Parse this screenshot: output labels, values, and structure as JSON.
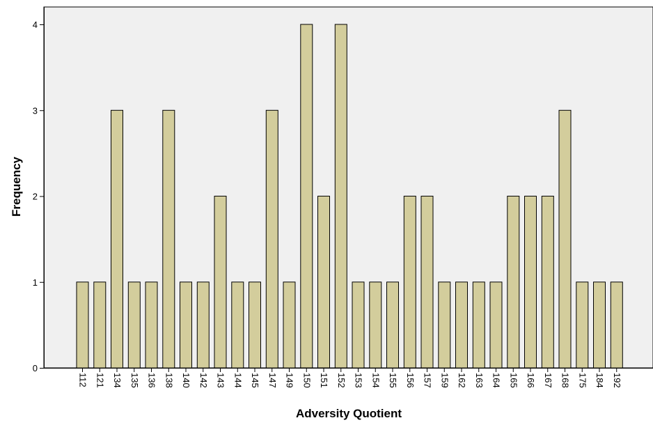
{
  "chart_data": {
    "type": "bar",
    "xlabel": "Adversity Quotient",
    "ylabel": "Frequency",
    "ylim": [
      0,
      4
    ],
    "yticks": [
      0,
      1,
      2,
      3,
      4
    ],
    "categories": [
      "112",
      "121",
      "134",
      "135",
      "136",
      "138",
      "140",
      "142",
      "143",
      "144",
      "145",
      "147",
      "149",
      "150",
      "151",
      "152",
      "153",
      "154",
      "155",
      "156",
      "157",
      "159",
      "162",
      "163",
      "164",
      "165",
      "166",
      "167",
      "168",
      "175",
      "184",
      "192"
    ],
    "values": [
      1,
      1,
      3,
      1,
      1,
      3,
      1,
      1,
      2,
      1,
      1,
      3,
      1,
      4,
      2,
      4,
      1,
      1,
      1,
      2,
      2,
      1,
      1,
      1,
      1,
      2,
      2,
      2,
      3,
      1,
      1,
      1
    ],
    "grid": false,
    "colors": {
      "plot_background": "#f0f0f0",
      "bar_fill": "#d3cd9c",
      "bar_stroke": "#000000"
    }
  }
}
